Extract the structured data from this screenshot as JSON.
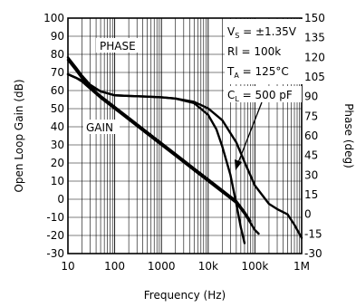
{
  "chart_data": {
    "type": "line",
    "xlabel": "Frequency (Hz)",
    "ylabel": "Open Loop Gain (dB)",
    "y2label": "Phase (deg)",
    "xscale": "log",
    "xlim": [
      10,
      1000000
    ],
    "ylim": [
      -30,
      100
    ],
    "y2lim": [
      -30,
      150
    ],
    "grid": true,
    "x_ticks": [
      "10",
      "100",
      "1000",
      "10k",
      "100k",
      "1M"
    ],
    "x_tick_values": [
      10,
      100,
      1000,
      10000,
      100000,
      1000000
    ],
    "y_ticks": [
      100,
      90,
      80,
      70,
      60,
      50,
      40,
      30,
      20,
      10,
      0,
      -10,
      -20,
      -30
    ],
    "y2_ticks": [
      150,
      135,
      120,
      105,
      90,
      75,
      60,
      45,
      30,
      15,
      0,
      -15,
      -30
    ],
    "annotations": {
      "phase": "PHASE",
      "gain": "GAIN",
      "vs_main": "V",
      "vs_sub": "S",
      "vs_value": " = ±1.35V",
      "rl": "Rl = 100k",
      "ta_main": "T",
      "ta_sub": "A",
      "ta_value": " = 125°C",
      "cl_main": "C",
      "cl_sub": "L",
      "cl_value": " = 500 pF"
    },
    "series": [
      {
        "axis": "left",
        "x": [
          10,
          15,
          20,
          30,
          50,
          100,
          200,
          500,
          1000,
          2000,
          5000,
          10000,
          20000,
          40000,
          60000,
          80000,
          100000,
          120000
        ],
        "y": [
          69,
          67,
          65,
          61,
          56,
          50,
          44,
          36,
          30,
          24,
          16,
          10,
          4,
          -2,
          -8,
          -13,
          -17,
          -19
        ]
      },
      {
        "axis": "left",
        "x": [
          10,
          15,
          20,
          30,
          50,
          100,
          200,
          500,
          1000,
          2000,
          5000,
          10000,
          20000,
          40000,
          60000,
          80000
        ],
        "y": [
          69,
          67,
          65.5,
          62,
          57,
          51,
          45,
          37,
          31,
          25,
          17,
          11,
          5,
          -1,
          -7,
          -12
        ]
      },
      {
        "axis": "right",
        "x": [
          10,
          15,
          20,
          30,
          50,
          100,
          200,
          500,
          1000,
          2000,
          5000,
          10000,
          20000,
          40000,
          60000,
          100000,
          200000,
          300000,
          500000,
          700000,
          1000000
        ],
        "y": [
          120,
          112,
          106,
          99,
          94,
          91,
          90.5,
          90,
          89.5,
          88.5,
          86,
          81,
          72,
          55,
          40,
          22,
          8,
          4,
          0,
          -8,
          -18
        ]
      },
      {
        "axis": "right",
        "x": [
          10,
          15,
          20,
          30,
          50,
          100,
          200,
          500,
          1000,
          2000,
          5000,
          10000,
          15000,
          20000,
          30000,
          40000,
          50000,
          60000
        ],
        "y": [
          118,
          110,
          104,
          98,
          94,
          91,
          90.5,
          90,
          89.5,
          88.5,
          85,
          76,
          65,
          52,
          30,
          8,
          -10,
          -22
        ]
      }
    ]
  }
}
